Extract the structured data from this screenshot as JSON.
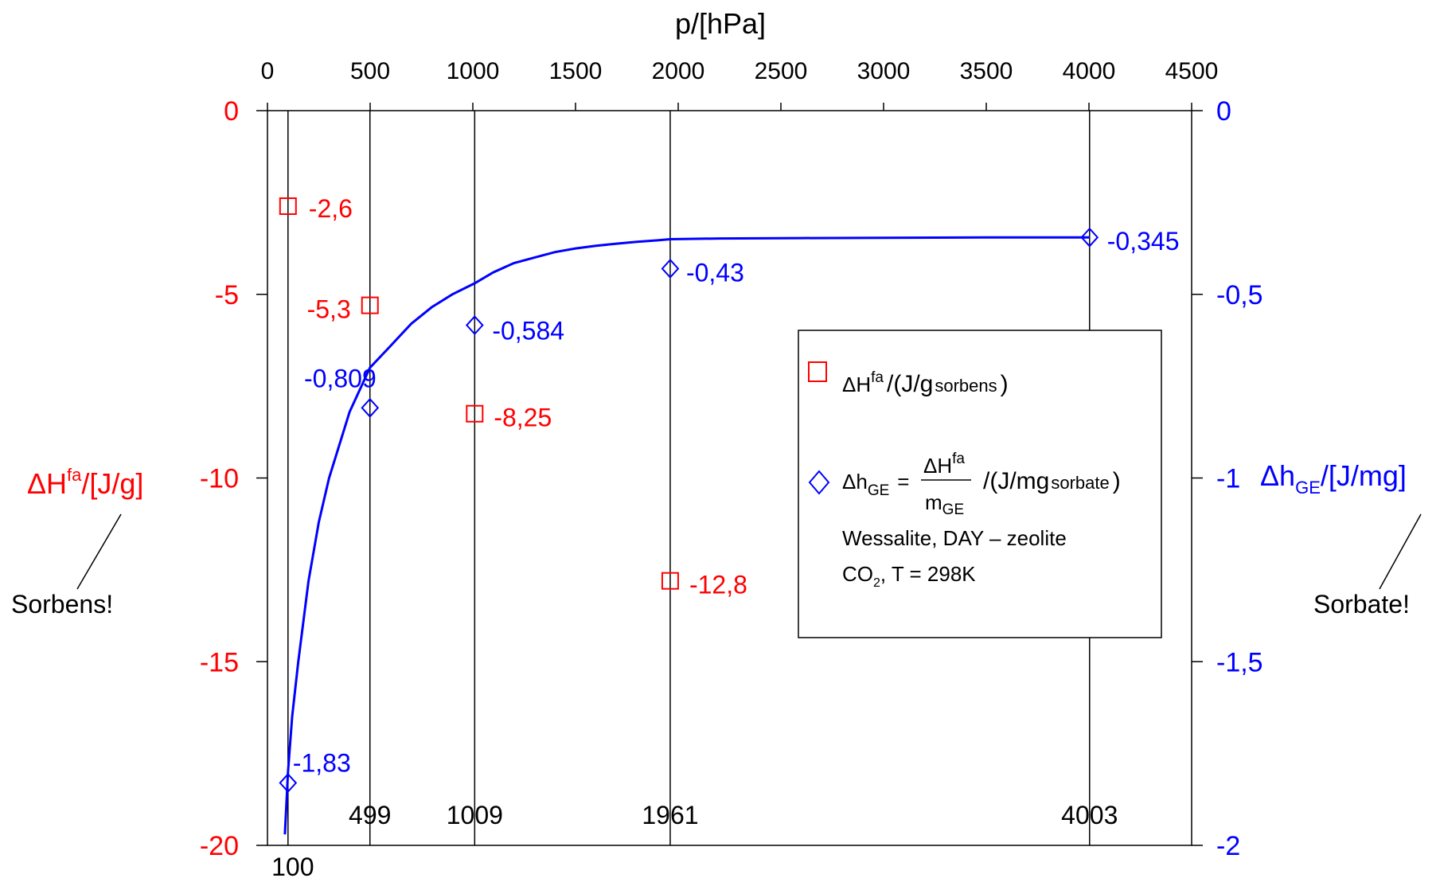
{
  "chart_data": {
    "type": "scatter",
    "top_axis": {
      "label": "p/[hPa]",
      "ticks": [
        "0",
        "500",
        "1000",
        "1500",
        "2000",
        "2500",
        "3000",
        "3500",
        "4000",
        "4500"
      ],
      "range": [
        0,
        4500
      ]
    },
    "left_axis": {
      "label_main": "ΔH",
      "label_sup": "fa",
      "label_rest": "/[J/g]",
      "ticks": [
        "0",
        "-5",
        "-10",
        "-15",
        "-20"
      ],
      "range": [
        -20,
        0
      ],
      "color": "#ff0000"
    },
    "right_axis": {
      "label_main": "Δh",
      "label_sub": "GE",
      "label_rest": "/[J/mg]",
      "ticks": [
        "0",
        "-0,5",
        "-1",
        "-1,5",
        "-2"
      ],
      "range": [
        -2,
        0
      ],
      "color": "#0000ff"
    },
    "vertical_lines": [
      {
        "x": 100,
        "label": "100"
      },
      {
        "x": 499,
        "label": "499"
      },
      {
        "x": 1009,
        "label": "1009"
      },
      {
        "x": 1961,
        "label": "1961"
      },
      {
        "x": 4003,
        "label": "4003"
      }
    ],
    "series": [
      {
        "name": "ΔHfa/(J/g sorbens)",
        "axis": "left",
        "color": "#ff0000",
        "marker": "square",
        "points": [
          {
            "x": 100,
            "y": -2.6,
            "label": "-2,6"
          },
          {
            "x": 499,
            "y": -5.3,
            "label": "-5,3"
          },
          {
            "x": 1009,
            "y": -8.25,
            "label": "-8,25"
          },
          {
            "x": 1961,
            "y": -12.8,
            "label": "-12,8"
          }
        ]
      },
      {
        "name": "ΔhGE = ΔHfa/mGE /(J/mg sorbate)",
        "axis": "right",
        "color": "#0000ff",
        "marker": "diamond",
        "points": [
          {
            "x": 100,
            "y": -1.83,
            "label": "-1,83"
          },
          {
            "x": 499,
            "y": -0.809,
            "label": "-0,809"
          },
          {
            "x": 1009,
            "y": -0.584,
            "label": "-0,584"
          },
          {
            "x": 1961,
            "y": -0.43,
            "label": "-0,43"
          },
          {
            "x": 4003,
            "y": -0.345,
            "label": "-0,345"
          }
        ]
      }
    ],
    "curve": {
      "axis": "right",
      "color": "#0000ff",
      "x": [
        85,
        100,
        120,
        150,
        200,
        250,
        300,
        400,
        499,
        600,
        700,
        800,
        900,
        1009,
        1100,
        1200,
        1300,
        1400,
        1500,
        1600,
        1700,
        1800,
        1900,
        1961,
        2200,
        2600,
        3000,
        3500,
        4003
      ],
      "y": [
        -1.97,
        -1.8,
        -1.65,
        -1.5,
        -1.28,
        -1.12,
        -1.0,
        -0.82,
        -0.7,
        -0.64,
        -0.58,
        -0.535,
        -0.5,
        -0.47,
        -0.44,
        -0.415,
        -0.4,
        -0.385,
        -0.375,
        -0.368,
        -0.362,
        -0.357,
        -0.353,
        -0.35,
        -0.348,
        -0.347,
        -0.346,
        -0.345,
        -0.345
      ]
    },
    "legend": {
      "position": "right-center",
      "square_text": "ΔH",
      "square_sup": "fa",
      "square_rest": "/(J/g",
      "square_sub": "sorbens",
      "diamond_lhs": "Δh",
      "diamond_lhs_sub": "GE",
      "diamond_num": "ΔH",
      "diamond_num_sup": "fa",
      "diamond_den": "m",
      "diamond_den_sub": "GE",
      "diamond_rest": "/(J/mg",
      "diamond_rest_sub": "sorbate",
      "line3": "Wessalite, DAY – zeolite",
      "line4_a": "CO",
      "line4_sub": "2",
      "line4_b": ", T = 298K"
    },
    "notes": {
      "left": "Sorbens!",
      "right": "Sorbate!"
    },
    "grid": false
  }
}
